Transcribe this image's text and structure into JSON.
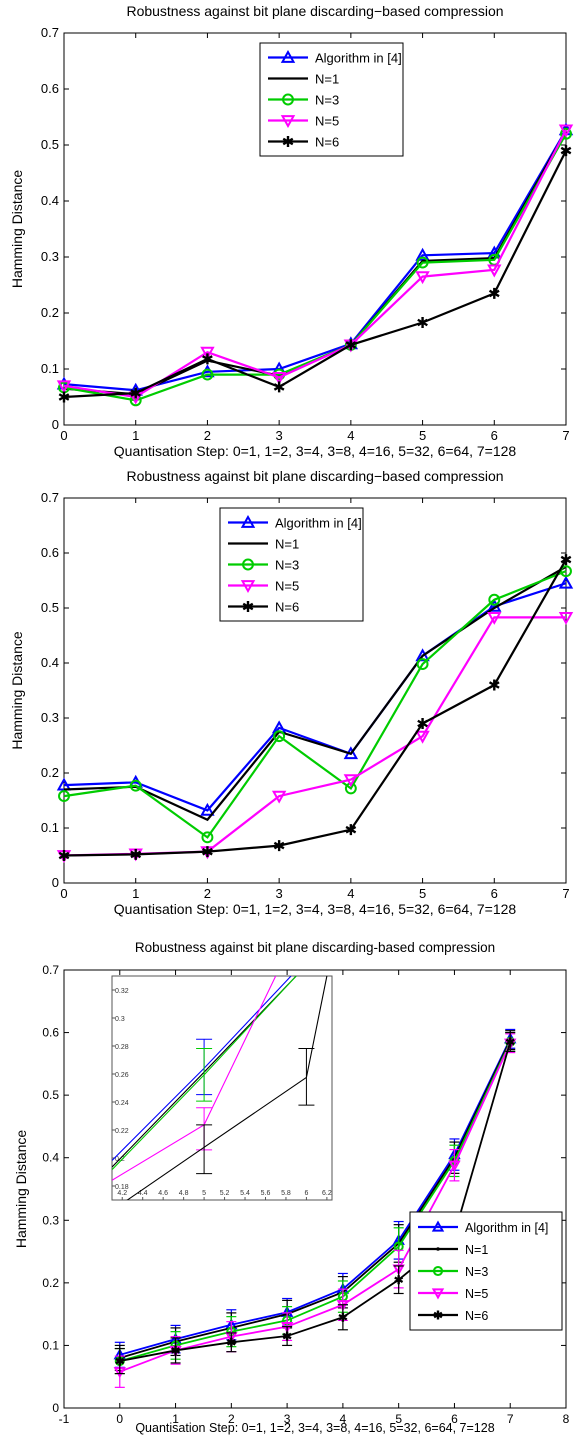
{
  "chart_data": [
    {
      "type": "line",
      "title": "Robustness against bit plane discarding−based compression",
      "xlabel": "Quantisation Step: 0=1, 1=2, 3=4, 3=8, 4=16, 5=32, 6=64, 7=128",
      "ylabel": "Hamming Distance",
      "xlim": [
        0,
        7
      ],
      "ylim": [
        0,
        0.7
      ],
      "x": [
        0,
        1,
        2,
        3,
        4,
        5,
        6,
        7
      ],
      "xticks": [
        "0",
        "1",
        "2",
        "3",
        "4",
        "5",
        "6",
        "7"
      ],
      "yticks": [
        "0",
        "0.1",
        "0.2",
        "0.3",
        "0.4",
        "0.5",
        "0.6",
        "0.7"
      ],
      "legend_position": "top-center",
      "series": [
        {
          "name": "Algorithm in [4]",
          "color": "#0000ff",
          "marker": "triangle-up",
          "values": [
            0.073,
            0.062,
            0.095,
            0.1,
            0.145,
            0.303,
            0.307,
            0.527
          ]
        },
        {
          "name": "N=1",
          "color": "#000000",
          "marker": "none",
          "values": [
            0.065,
            0.055,
            0.115,
            0.088,
            0.143,
            0.293,
            0.298,
            0.525
          ]
        },
        {
          "name": "N=3",
          "color": "#00cc00",
          "marker": "circle",
          "values": [
            0.067,
            0.044,
            0.09,
            0.09,
            0.143,
            0.29,
            0.295,
            0.52
          ]
        },
        {
          "name": "N=5",
          "color": "#ff00ff",
          "marker": "triangle-down",
          "values": [
            0.07,
            0.05,
            0.13,
            0.085,
            0.143,
            0.265,
            0.277,
            0.527
          ]
        },
        {
          "name": "N=6",
          "color": "#000000",
          "marker": "star",
          "values": [
            0.05,
            0.057,
            0.118,
            0.068,
            0.143,
            0.183,
            0.235,
            0.49
          ]
        }
      ]
    },
    {
      "type": "line",
      "title": "Robustness against bit plane discarding−based compression",
      "xlabel": "Quantisation Step: 0=1, 1=2, 3=4, 3=8, 4=16, 5=32, 6=64, 7=128",
      "ylabel": "Hamming Distance",
      "xlim": [
        0,
        7
      ],
      "ylim": [
        0,
        0.7
      ],
      "x": [
        0,
        1,
        2,
        3,
        4,
        5,
        6,
        7
      ],
      "xticks": [
        "0",
        "1",
        "2",
        "3",
        "4",
        "5",
        "6",
        "7"
      ],
      "yticks": [
        "0",
        "0.1",
        "0.2",
        "0.3",
        "0.4",
        "0.5",
        "0.6",
        "0.7"
      ],
      "legend_position": "top-left",
      "series": [
        {
          "name": "Algorithm in [4]",
          "color": "#0000ff",
          "marker": "triangle-up",
          "values": [
            0.178,
            0.183,
            0.132,
            0.282,
            0.235,
            0.413,
            0.503,
            0.545
          ]
        },
        {
          "name": "N=1",
          "color": "#000000",
          "marker": "none",
          "values": [
            0.17,
            0.175,
            0.115,
            0.275,
            0.235,
            0.413,
            0.5,
            0.575
          ]
        },
        {
          "name": "N=3",
          "color": "#00cc00",
          "marker": "circle",
          "values": [
            0.158,
            0.177,
            0.083,
            0.267,
            0.172,
            0.398,
            0.515,
            0.567
          ]
        },
        {
          "name": "N=5",
          "color": "#ff00ff",
          "marker": "triangle-down",
          "values": [
            0.05,
            0.053,
            0.057,
            0.158,
            0.188,
            0.267,
            0.483,
            0.483
          ]
        },
        {
          "name": "N=6",
          "color": "#000000",
          "marker": "star",
          "values": [
            0.05,
            0.052,
            0.057,
            0.068,
            0.097,
            0.29,
            0.36,
            0.588
          ]
        }
      ]
    },
    {
      "type": "line",
      "title": "Robustness against bit plane discarding-based compression",
      "xlabel": "Quantisation Step: 0=1, 1=2, 3=4, 3=8, 4=16, 5=32, 6=64, 7=128",
      "ylabel": "Hamming Distance",
      "xlim": [
        -1,
        8
      ],
      "ylim": [
        0,
        0.7
      ],
      "x": [
        0,
        1,
        2,
        3,
        4,
        5,
        6,
        7
      ],
      "xticks": [
        "-1",
        "0",
        "1",
        "2",
        "3",
        "4",
        "5",
        "6",
        "7",
        "8"
      ],
      "yticks": [
        "0",
        "0.1",
        "0.2",
        "0.3",
        "0.4",
        "0.5",
        "0.6",
        "0.7"
      ],
      "legend_position": "bottom-right",
      "error_bars": true,
      "series": [
        {
          "name": "Algorithm in [4]",
          "color": "#0000ff",
          "marker": "triangle-up",
          "values": [
            0.085,
            0.11,
            0.133,
            0.153,
            0.19,
            0.268,
            0.405,
            0.59
          ],
          "errors": [
            0.02,
            0.022,
            0.024,
            0.022,
            0.025,
            0.03,
            0.025,
            0.015
          ]
        },
        {
          "name": "N=1",
          "color": "#000000",
          "marker": "dot",
          "values": [
            0.08,
            0.106,
            0.128,
            0.15,
            0.185,
            0.263,
            0.4,
            0.588
          ],
          "errors": [
            0.02,
            0.022,
            0.024,
            0.022,
            0.025,
            0.03,
            0.025,
            0.015
          ]
        },
        {
          "name": "N=3",
          "color": "#00cc00",
          "marker": "circle",
          "values": [
            0.075,
            0.1,
            0.122,
            0.14,
            0.178,
            0.258,
            0.395,
            0.585
          ],
          "errors": [
            0.02,
            0.022,
            0.024,
            0.022,
            0.025,
            0.03,
            0.025,
            0.015
          ]
        },
        {
          "name": "N=5",
          "color": "#ff00ff",
          "marker": "triangle-down",
          "values": [
            0.058,
            0.092,
            0.114,
            0.13,
            0.165,
            0.222,
            0.388,
            0.583
          ],
          "errors": [
            0.025,
            0.022,
            0.024,
            0.022,
            0.025,
            0.03,
            0.025,
            0.015
          ]
        },
        {
          "name": "N=6",
          "color": "#000000",
          "marker": "star",
          "values": [
            0.075,
            0.092,
            0.105,
            0.115,
            0.145,
            0.205,
            0.278,
            0.585
          ],
          "errors": [
            0.02,
            0.02,
            0.015,
            0.015,
            0.02,
            0.022,
            0.03,
            0.015
          ]
        }
      ],
      "inset": {
        "xlim": [
          4.1,
          6.25
        ],
        "ylim": [
          0.165,
          0.335
        ],
        "xticks": [
          "4.2",
          "4.4",
          "4.6",
          "4.8",
          "5",
          "5.2",
          "5.4",
          "5.6",
          "5.8",
          "6",
          "6.2"
        ],
        "yticks": [
          "0.18",
          "0.2",
          "0.22",
          "0.24",
          "0.26",
          "0.28",
          "0.3",
          "0.32"
        ],
        "series": [
          {
            "color": "#0000ff",
            "points": [
              [
                4.1,
                0.195
              ],
              [
                5.0,
                0.265
              ],
              [
                5.85,
                0.335
              ]
            ],
            "error_x": 5.0,
            "error_low": 0.245,
            "error_high": 0.287
          },
          {
            "color": "#000000",
            "points": [
              [
                4.1,
                0.19
              ],
              [
                5.0,
                0.262
              ],
              [
                5.9,
                0.335
              ]
            ]
          },
          {
            "color": "#00cc00",
            "points": [
              [
                4.1,
                0.188
              ],
              [
                5.0,
                0.26
              ],
              [
                5.9,
                0.335
              ]
            ],
            "error_x": 5.0,
            "error_low": 0.24,
            "error_high": 0.28
          },
          {
            "color": "#ff00ff",
            "points": [
              [
                4.1,
                0.18
              ],
              [
                5.0,
                0.222
              ],
              [
                5.7,
                0.335
              ]
            ],
            "error_x": 5.0,
            "error_low": 0.203,
            "error_high": 0.235
          },
          {
            "color": "#000000",
            "points": [
              [
                4.1,
                0.157
              ],
              [
                5.0,
                0.205
              ],
              [
                6.0,
                0.258
              ],
              [
                6.2,
                0.335
              ]
            ],
            "error_x": 6.0,
            "error_low": 0.237,
            "error_high": 0.28,
            "error_x2": 5.0,
            "error_low2": 0.185,
            "error_high2": 0.222
          }
        ]
      }
    }
  ]
}
